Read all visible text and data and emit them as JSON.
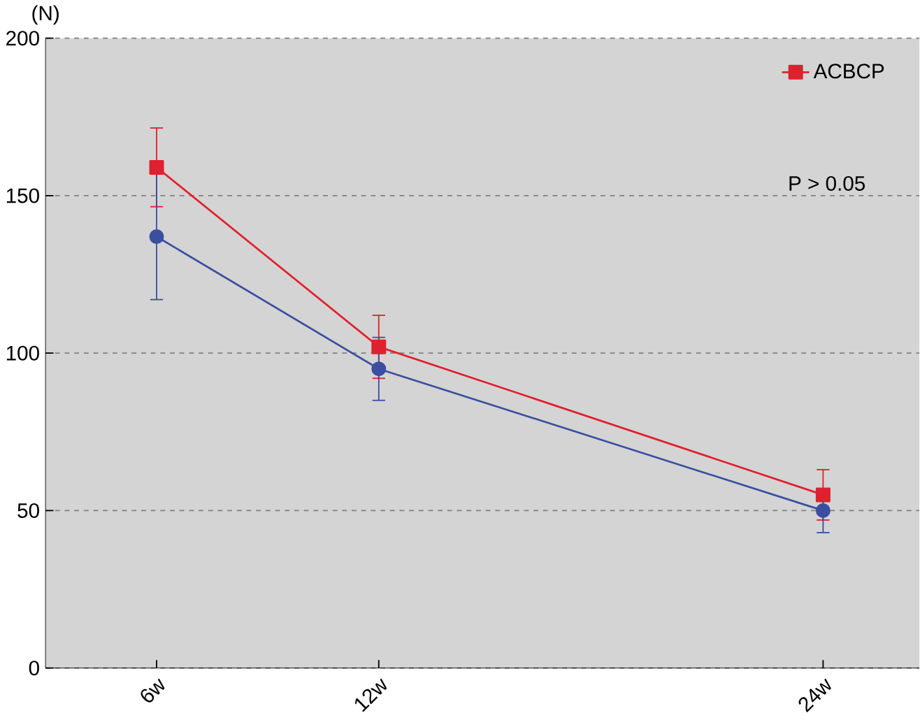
{
  "chart_data": {
    "type": "line",
    "ylabel": "(N)",
    "x": [
      6,
      12,
      24
    ],
    "series": [
      {
        "name": "ACBCP",
        "color": "#e0202e",
        "marker": "square",
        "values": [
          159,
          102,
          55
        ],
        "errors": [
          12.5,
          10,
          8
        ]
      },
      {
        "color": "#3a4fa0",
        "marker": "circle",
        "values": [
          137,
          95,
          50
        ],
        "errors": [
          20,
          10,
          7
        ]
      }
    ],
    "xlim": [
      3,
      26.6
    ],
    "xticks": [
      {
        "value": 6,
        "label": "6w"
      },
      {
        "value": 12,
        "label": "12w"
      },
      {
        "value": 24,
        "label": "24w"
      }
    ],
    "ylim": [
      0,
      200
    ],
    "yticks": [
      0,
      50,
      100,
      150,
      200
    ],
    "grid": "y",
    "legend": "top right",
    "annotations": [
      "P > 0.05"
    ]
  }
}
